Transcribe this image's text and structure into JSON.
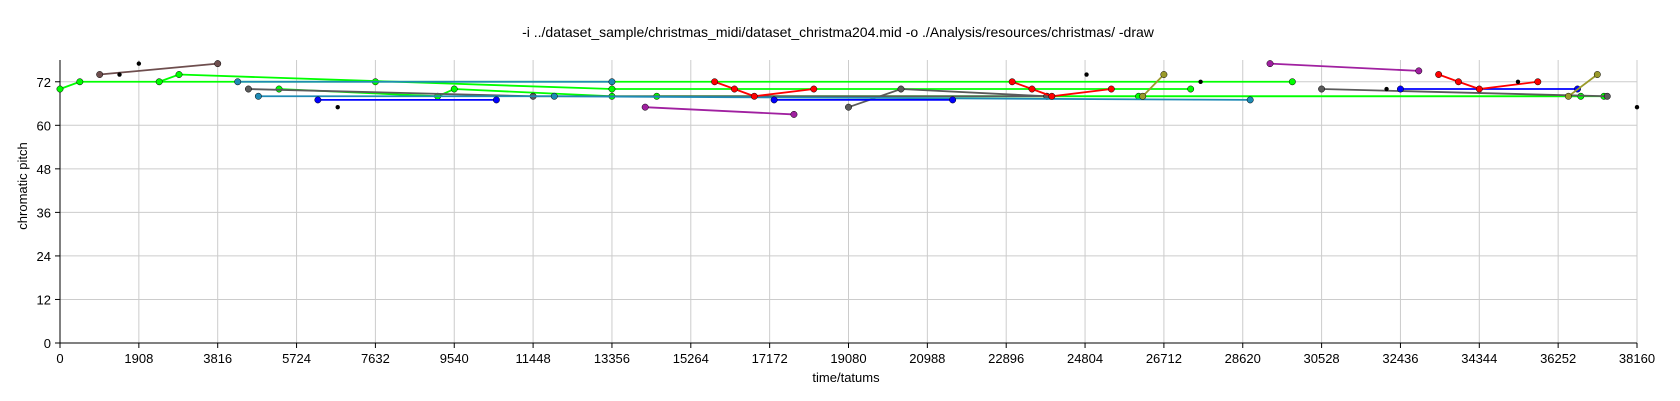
{
  "chart_data": {
    "type": "scatter",
    "title": "-i ../dataset_sample/christmas_midi/dataset_christma204.mid -o ./Analysis/resources/christmas/ -draw",
    "xlabel": "time/tatums",
    "ylabel": "chromatic pitch",
    "xlim": [
      0,
      38160
    ],
    "ylim": [
      0,
      78
    ],
    "x_ticks": [
      0,
      1908,
      3816,
      5724,
      7632,
      9540,
      11448,
      13356,
      15264,
      17172,
      19080,
      20988,
      22896,
      24804,
      26712,
      28620,
      30528,
      32436,
      34344,
      36252,
      38160
    ],
    "y_ticks": [
      0,
      12,
      24,
      36,
      48,
      60,
      72
    ],
    "grid": true,
    "legend": "none",
    "series": [
      {
        "color": "#00ff00",
        "points": [
          [
            0,
            70
          ],
          [
            480,
            72
          ],
          [
            7632,
            72
          ],
          [
            29820,
            72
          ]
        ]
      },
      {
        "color": "#00ff00",
        "points": [
          [
            2400,
            72
          ],
          [
            2880,
            74
          ],
          [
            13356,
            70
          ],
          [
            27360,
            70
          ]
        ]
      },
      {
        "color": "#00ff00",
        "points": [
          [
            5300,
            70
          ],
          [
            9140,
            68
          ],
          [
            9540,
            70
          ],
          [
            13356,
            68
          ],
          [
            37360,
            68
          ]
        ]
      },
      {
        "color": "#00ff00",
        "points": [
          [
            14440,
            68
          ],
          [
            26100,
            68
          ],
          [
            36800,
            68
          ]
        ]
      },
      {
        "color": "#6e4e4e",
        "points": [
          [
            960,
            74
          ],
          [
            3816,
            77
          ]
        ]
      },
      {
        "color": "#5a5a5a",
        "points": [
          [
            4560,
            70
          ],
          [
            11448,
            68
          ],
          [
            23880,
            68
          ]
        ]
      },
      {
        "color": "#5a5a5a",
        "points": [
          [
            30528,
            70
          ],
          [
            37440,
            68
          ]
        ]
      },
      {
        "color": "#5a5a5a",
        "points": [
          [
            19080,
            65
          ],
          [
            20350,
            70
          ],
          [
            23880,
            68
          ]
        ]
      },
      {
        "color": "#1e8ab4",
        "points": [
          [
            4800,
            68
          ],
          [
            11960,
            68
          ],
          [
            28800,
            67
          ]
        ]
      },
      {
        "color": "#1e8ab4",
        "points": [
          [
            4300,
            72
          ],
          [
            13356,
            72
          ]
        ]
      },
      {
        "color": "#0000ff",
        "points": [
          [
            6240,
            67
          ],
          [
            10560,
            67
          ]
        ]
      },
      {
        "color": "#0000ff",
        "points": [
          [
            17280,
            67
          ],
          [
            21600,
            67
          ]
        ]
      },
      {
        "color": "#0000ff",
        "points": [
          [
            32436,
            70
          ],
          [
            36720,
            70
          ]
        ]
      },
      {
        "color": "#ff0000",
        "points": [
          [
            15840,
            72
          ],
          [
            16320,
            70
          ],
          [
            16800,
            68
          ],
          [
            18240,
            70
          ]
        ]
      },
      {
        "color": "#ff0000",
        "points": [
          [
            23040,
            72
          ],
          [
            23520,
            70
          ],
          [
            24000,
            68
          ],
          [
            25440,
            70
          ]
        ]
      },
      {
        "color": "#ff0000",
        "points": [
          [
            33360,
            74
          ],
          [
            33840,
            72
          ],
          [
            34344,
            70
          ],
          [
            35760,
            72
          ]
        ]
      },
      {
        "color": "#a020a0",
        "points": [
          [
            14160,
            65
          ],
          [
            17760,
            63
          ]
        ]
      },
      {
        "color": "#a020a0",
        "points": [
          [
            29280,
            77
          ],
          [
            32880,
            75
          ]
        ]
      },
      {
        "color": "#9a9a2a",
        "points": [
          [
            26200,
            68
          ],
          [
            26712,
            74
          ]
        ]
      },
      {
        "color": "#9a9a2a",
        "points": [
          [
            36500,
            68
          ],
          [
            37200,
            74
          ]
        ]
      },
      {
        "color": "#000000",
        "points": [
          [
            1440,
            74
          ],
          [
            1908,
            77
          ],
          [
            6720,
            65
          ],
          [
            24840,
            74
          ],
          [
            27600,
            72
          ],
          [
            32100,
            70
          ],
          [
            35280,
            72
          ],
          [
            38160,
            65
          ]
        ]
      }
    ]
  }
}
